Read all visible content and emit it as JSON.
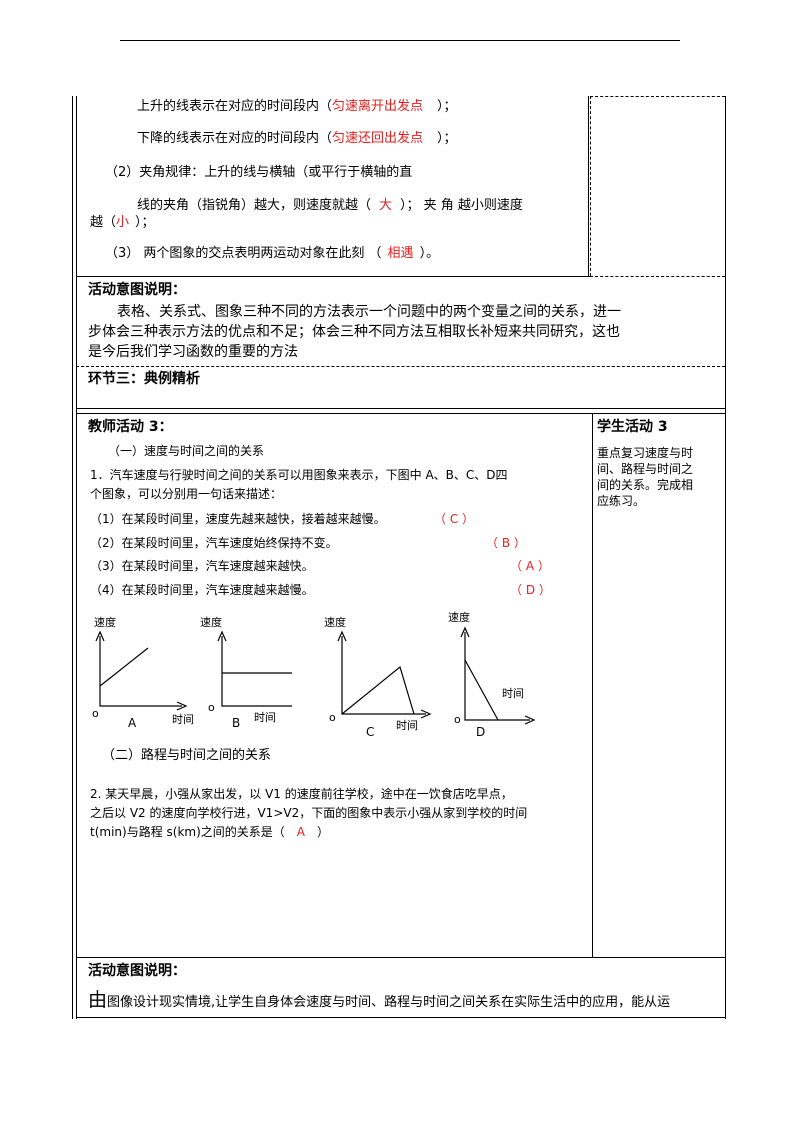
{
  "section_top": {
    "line_rise": {
      "prefix": "上升的线表示在对应的时间段内（",
      "answer": "匀速离开出发点",
      "suffix": "）；"
    },
    "line_fall": {
      "prefix": "下降的线表示在对应的时间段内（",
      "answer": "匀速还回出发点",
      "suffix": "）；"
    },
    "rule2_line1": "（2）夹角规律：上升的线与横轴（或平行于横轴的直",
    "rule2_line2": {
      "prefix": "线的夹角（指锐角）越大，则速度就越（",
      "answer1": "大",
      "middle": "）；   夹 角 越小则速度"
    },
    "rule2_line3": {
      "prefix": "越（",
      "answer2": "小",
      "suffix": "）；"
    },
    "rule3": {
      "prefix": "（3）  两个图象的交点表明两运动对象在此刻  （",
      "answer": "相遇",
      "suffix": "）。"
    }
  },
  "intent1": {
    "heading": "活动意图说明：",
    "lines": [
      "表格、关系式、图象三种不同的方法表示一个问题中的两个变量之间的关系，进一",
      "步体会三种表示方法的优点和不足；体会三种不同方法互相取长补短来共同研究，这也",
      "是今后我们学习函数的重要的方法"
    ]
  },
  "stage3": {
    "heading": "环节三：典例精析"
  },
  "teacher": {
    "heading": "教师活动 3：",
    "sub1": "（一）速度与时间之间的关系",
    "q1_line1": "1．汽车速度与行驶时间之间的关系可以用图象来表示，下图中 A、B、C、D四",
    "q1_line2": "个图象，可以分别用一句话来描述：",
    "items": [
      {
        "text": "（1）在某段时间里，速度先越来越快，接着越来越慢。",
        "answer": "（ C ）"
      },
      {
        "text": "（2）在某段时间里，汽车速度始终保持不变。",
        "answer": "（ B ）"
      },
      {
        "text": "（3）在某段时间里，汽车速度越来越快。",
        "answer": "（ A ）"
      },
      {
        "text": "（4）在某段时间里，汽车速度越来越慢。",
        "answer": "（ D ）"
      }
    ],
    "graphs": [
      {
        "ylabel": "速度",
        "origin": "o",
        "letter": "A",
        "xlabel": "时间"
      },
      {
        "ylabel": "速度",
        "origin": "o",
        "letter": "B",
        "xlabel": "时间"
      },
      {
        "ylabel": "速度",
        "origin": "o",
        "letter": "C",
        "xlabel": "时间"
      },
      {
        "ylabel": "速度",
        "origin": "o",
        "letter": "D",
        "xlabel": "时间"
      }
    ],
    "sub2": "（二）路程与时间之间的关系",
    "q2_line1": "2. 某天早晨，小强从家出发，以 V1 的速度前往学校，途中在一饮食店吃早点，",
    "q2_line2": "之后以 V2 的速度向学校行进，V1>V2，下面的图象中表示小强从家到学校的时间",
    "q2_line3": {
      "prefix": "t(min)与路程 s(km)之间的关系是（",
      "answer": "A",
      "suffix": "）"
    }
  },
  "student": {
    "heading": "学生活动 3",
    "lines": [
      "重点复习速度与时",
      "间、路程与时间之",
      "间的关系。完成相",
      "应练习。"
    ]
  },
  "intent2": {
    "heading": "活动意图说明：",
    "big_char": "由",
    "line": "图像设计现实情境,让学生自身体会速度与时间、路程与时间之间关系在实际生活中的应用，能从运"
  }
}
